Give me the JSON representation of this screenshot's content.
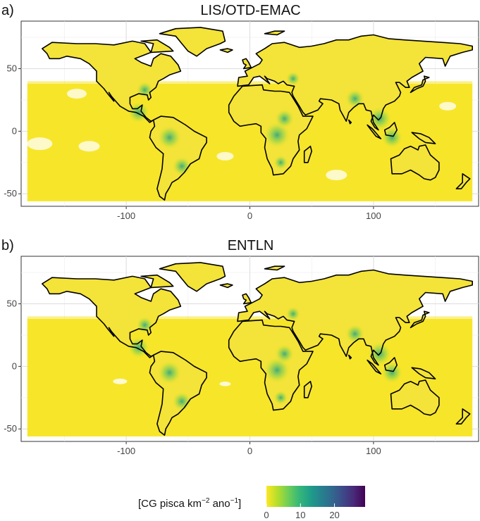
{
  "panels": [
    {
      "label": "a)",
      "title": "LIS/OTD-EMAC"
    },
    {
      "label": "b)",
      "title": "ENTLN"
    }
  ],
  "legend": {
    "title": "[CG pisca km",
    "title_sup": "−2",
    "title_mid": " ano",
    "title_sup2": "−1",
    "title_end": "]",
    "ticks": [
      "0",
      "10",
      "20"
    ],
    "colors": [
      "#fde725",
      "#b5de2b",
      "#6ece58",
      "#35b779",
      "#1f9e89",
      "#26828e",
      "#31688e",
      "#3e4989",
      "#482878",
      "#440154"
    ]
  },
  "chart_data": [
    {
      "type": "heatmap",
      "title": "LIS/OTD-EMAC",
      "x_ticks": [
        -100,
        0,
        100
      ],
      "y_ticks": [
        -50,
        0,
        50
      ],
      "xlim": [
        -185,
        185
      ],
      "ylim": [
        -60,
        88
      ],
      "grid": true,
      "colorscale": "viridis",
      "color_range": [
        0,
        29
      ]
    },
    {
      "type": "heatmap",
      "title": "ENTLN",
      "x_ticks": [
        -100,
        0,
        100
      ],
      "y_ticks": [
        -50,
        0,
        50
      ],
      "xlim": [
        -185,
        185
      ],
      "ylim": [
        -60,
        88
      ],
      "grid": true,
      "colorscale": "viridis",
      "color_range": [
        0,
        29
      ]
    }
  ]
}
